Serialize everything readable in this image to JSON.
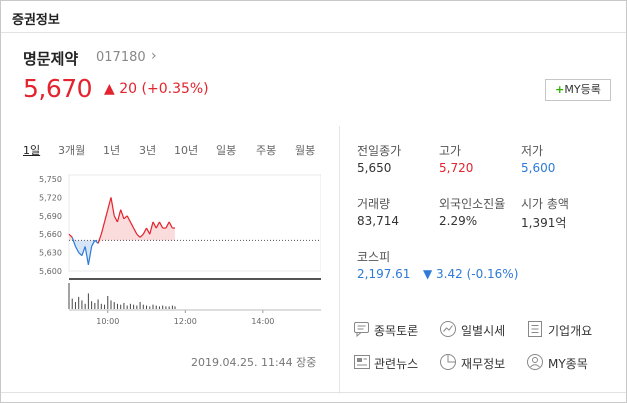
{
  "header": {
    "title": "증권정보"
  },
  "stock": {
    "name": "명문제약",
    "code": "017180",
    "price": "5,670",
    "change_arrow": "▲",
    "change": "20",
    "change_pct": "(+0.35%)"
  },
  "my_button": {
    "plus": "+",
    "label": "MY등록"
  },
  "tabs": [
    "1일",
    "3개월",
    "1년",
    "3년",
    "10년",
    "일봉",
    "주봉",
    "월봉"
  ],
  "stats": {
    "prev_close": {
      "label": "전일종가",
      "value": "5,650"
    },
    "high": {
      "label": "고가",
      "value": "5,720"
    },
    "low": {
      "label": "저가",
      "value": "5,600"
    },
    "volume": {
      "label": "거래량",
      "value": "83,714"
    },
    "foreign": {
      "label": "외국인소진율",
      "value": "2.29%"
    },
    "mktcap": {
      "label": "시가 총액",
      "value": "1,391억"
    },
    "index": {
      "label": "코스피",
      "value": "2,197.61",
      "change": "▼ 3.42 (-0.16%)"
    }
  },
  "links": [
    "종목토론",
    "일별시세",
    "기업개요",
    "관련뉴스",
    "재무정보",
    "MY종목"
  ],
  "timestamp": "2019.04.25. 11:44 장중",
  "colors": {
    "up": "#e3232d",
    "down": "#2d7ad7",
    "accent": "#2db400"
  },
  "chart_data": {
    "type": "line",
    "y_ticks": [
      "5,750",
      "5,720",
      "5,690",
      "5,660",
      "5,630",
      "5,600"
    ],
    "x_ticks": [
      "10:00",
      "12:00",
      "14:00"
    ],
    "ylim": [
      5600,
      5750
    ],
    "baseline": 5650,
    "x": [
      "09:00",
      "09:05",
      "09:10",
      "09:15",
      "09:20",
      "09:25",
      "09:30",
      "09:35",
      "09:40",
      "09:45",
      "09:50",
      "09:55",
      "10:00",
      "10:05",
      "10:10",
      "10:15",
      "10:20",
      "10:25",
      "10:30",
      "10:35",
      "10:40",
      "10:45",
      "10:50",
      "10:55",
      "11:00",
      "11:05",
      "11:10",
      "11:15",
      "11:20",
      "11:25",
      "11:30",
      "11:35",
      "11:40",
      "11:44"
    ],
    "values": [
      5660,
      5655,
      5640,
      5630,
      5625,
      5640,
      5610,
      5640,
      5650,
      5645,
      5660,
      5680,
      5700,
      5720,
      5690,
      5680,
      5700,
      5685,
      5690,
      5680,
      5670,
      5660,
      5655,
      5660,
      5670,
      5660,
      5680,
      5670,
      5680,
      5670,
      5670,
      5680,
      5670,
      5670
    ],
    "volume": [
      30,
      12,
      8,
      14,
      10,
      6,
      18,
      9,
      7,
      11,
      6,
      5,
      15,
      10,
      8,
      6,
      5,
      7,
      4,
      6,
      5,
      4,
      8,
      5,
      4,
      3,
      5,
      4,
      3,
      4,
      3,
      3,
      4,
      3
    ]
  }
}
